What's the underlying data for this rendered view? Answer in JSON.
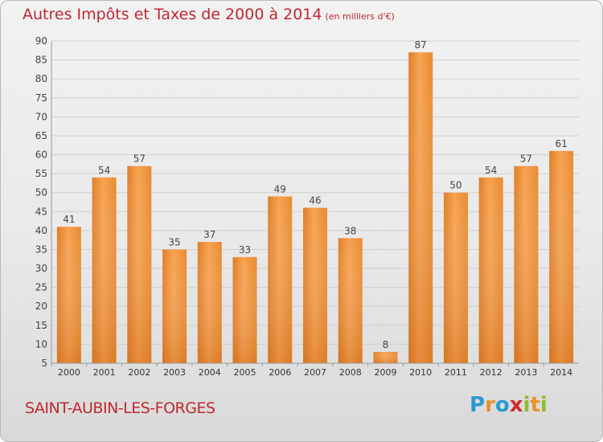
{
  "title": "Autres Impôts et Taxes de 2000 à 2014",
  "title_unit": "(en milliers d'€)",
  "city": "SAINT-AUBIN-LES-FORGES",
  "logo": {
    "letters": [
      "P",
      "r",
      "o",
      "x",
      "i",
      "t",
      "i"
    ],
    "colors": [
      "#2a9ad5",
      "#e8932b",
      "#2a9ad5",
      "#d02a2a",
      "#8cbf2a",
      "#e8932b",
      "#8cbf2a"
    ]
  },
  "colors": {
    "bar": "#f0953a",
    "bar_dark": "#d97520",
    "title": "#c0282f"
  },
  "chart_data": {
    "type": "bar",
    "title": "Autres Impôts et Taxes de 2000 à 2014",
    "subtitle": "(en milliers d'€)",
    "categories": [
      "2000",
      "2001",
      "2002",
      "2003",
      "2004",
      "2005",
      "2006",
      "2007",
      "2008",
      "2009",
      "2010",
      "2011",
      "2012",
      "2013",
      "2014"
    ],
    "values": [
      41,
      54,
      57,
      35,
      37,
      33,
      49,
      46,
      38,
      8,
      87,
      50,
      54,
      57,
      61
    ],
    "ylim": [
      5,
      90
    ],
    "yticks": [
      5,
      10,
      15,
      20,
      25,
      30,
      35,
      40,
      45,
      50,
      55,
      60,
      65,
      70,
      75,
      80,
      85,
      90
    ],
    "grid": true,
    "data_labels": true
  }
}
